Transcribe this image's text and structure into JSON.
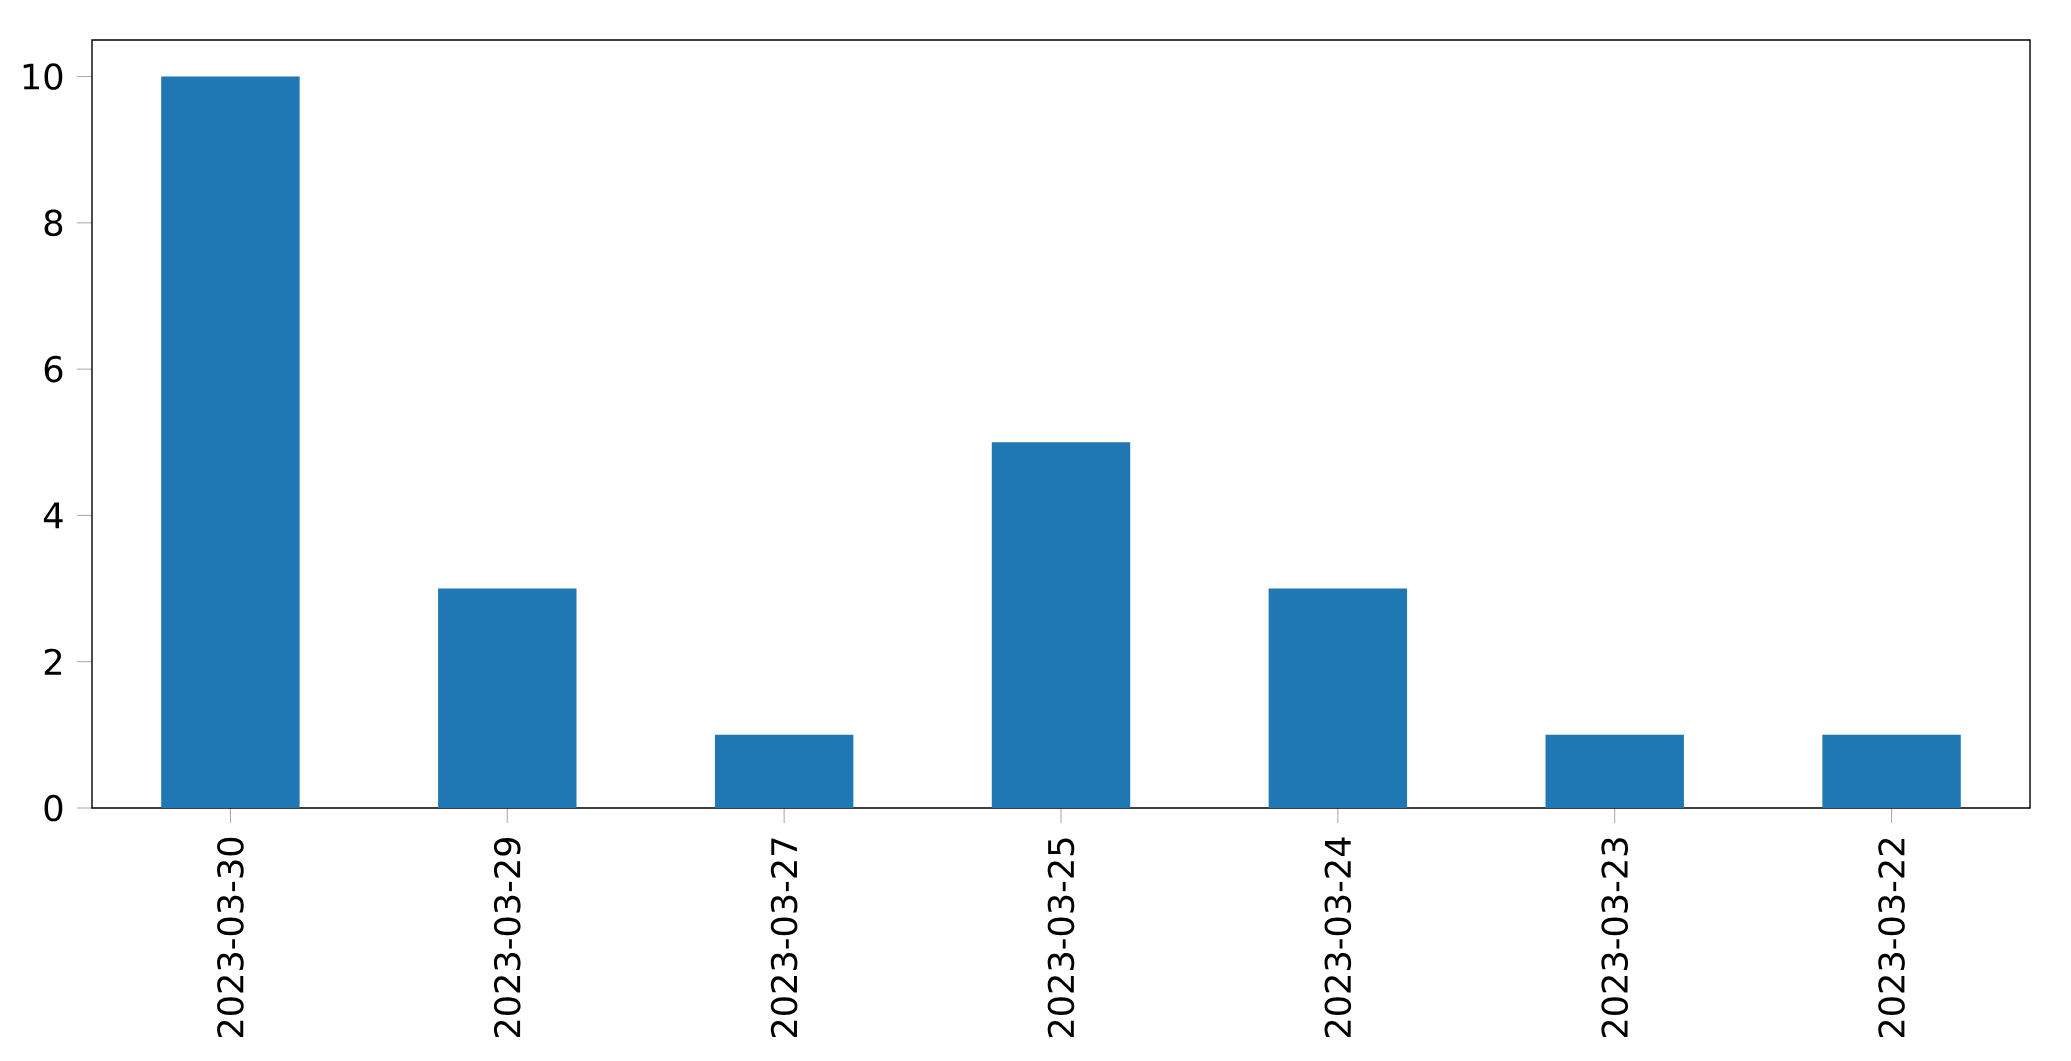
{
  "chart_data": {
    "type": "bar",
    "categories": [
      "2023-03-30",
      "2023-03-29",
      "2023-03-27",
      "2023-03-25",
      "2023-03-24",
      "2023-03-23",
      "2023-03-22"
    ],
    "values": [
      10,
      3,
      1,
      5,
      3,
      1,
      1
    ],
    "color": "#1f77b4",
    "ylim": [
      0,
      10.5
    ],
    "yticks": [
      0,
      2,
      4,
      6,
      8,
      10
    ]
  }
}
